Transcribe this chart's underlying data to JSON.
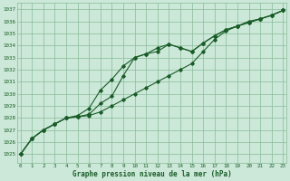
{
  "xlabel": "Graphe pression niveau de la mer (hPa)",
  "xlim": [
    -0.3,
    23.3
  ],
  "ylim": [
    1024.3,
    1037.5
  ],
  "yticks": [
    1025,
    1026,
    1027,
    1028,
    1029,
    1030,
    1031,
    1032,
    1033,
    1034,
    1035,
    1036,
    1037
  ],
  "xticks": [
    0,
    1,
    2,
    3,
    4,
    5,
    6,
    7,
    8,
    9,
    10,
    11,
    12,
    13,
    14,
    15,
    16,
    17,
    18,
    19,
    20,
    21,
    22,
    23
  ],
  "bg_color": "#cce8d8",
  "grid_color": "#88bb99",
  "line_color": "#1a5c28",
  "line1_x": [
    0,
    1,
    2,
    3,
    4,
    5,
    6,
    7,
    8,
    9,
    10,
    11,
    12,
    13,
    14,
    15,
    16,
    17,
    18,
    19,
    20,
    21,
    22,
    23
  ],
  "line1_y": [
    1025.0,
    1026.3,
    1027.0,
    1027.5,
    1028.0,
    1028.1,
    1028.2,
    1028.5,
    1029.0,
    1029.5,
    1030.0,
    1030.5,
    1031.0,
    1031.5,
    1032.0,
    1032.5,
    1033.5,
    1034.5,
    1035.2,
    1035.6,
    1036.0,
    1036.2,
    1036.5,
    1036.9
  ],
  "line2_x": [
    0,
    1,
    2,
    3,
    4,
    5,
    6,
    7,
    8,
    9,
    10,
    11,
    12,
    13,
    14,
    15,
    16,
    17,
    18,
    19,
    20,
    21,
    22,
    23
  ],
  "line2_y": [
    1025.0,
    1026.3,
    1027.0,
    1027.5,
    1028.0,
    1028.2,
    1028.8,
    1030.3,
    1031.2,
    1032.3,
    1033.0,
    1033.3,
    1033.5,
    1034.1,
    1033.8,
    1033.5,
    1034.2,
    1034.8,
    1035.3,
    1035.6,
    1035.9,
    1036.2,
    1036.5,
    1036.9
  ],
  "line3_x": [
    0,
    1,
    2,
    3,
    4,
    5,
    6,
    7,
    8,
    9,
    10,
    11,
    12,
    13,
    14,
    15,
    16,
    17,
    18,
    19,
    20,
    21,
    22,
    23
  ],
  "line3_y": [
    1025.0,
    1026.3,
    1027.0,
    1027.5,
    1028.0,
    1028.1,
    1028.3,
    1029.2,
    1029.8,
    1031.5,
    1033.0,
    1033.3,
    1033.8,
    1034.1,
    1033.8,
    1033.5,
    1034.2,
    1034.8,
    1035.3,
    1035.6,
    1035.9,
    1036.2,
    1036.5,
    1036.9
  ]
}
